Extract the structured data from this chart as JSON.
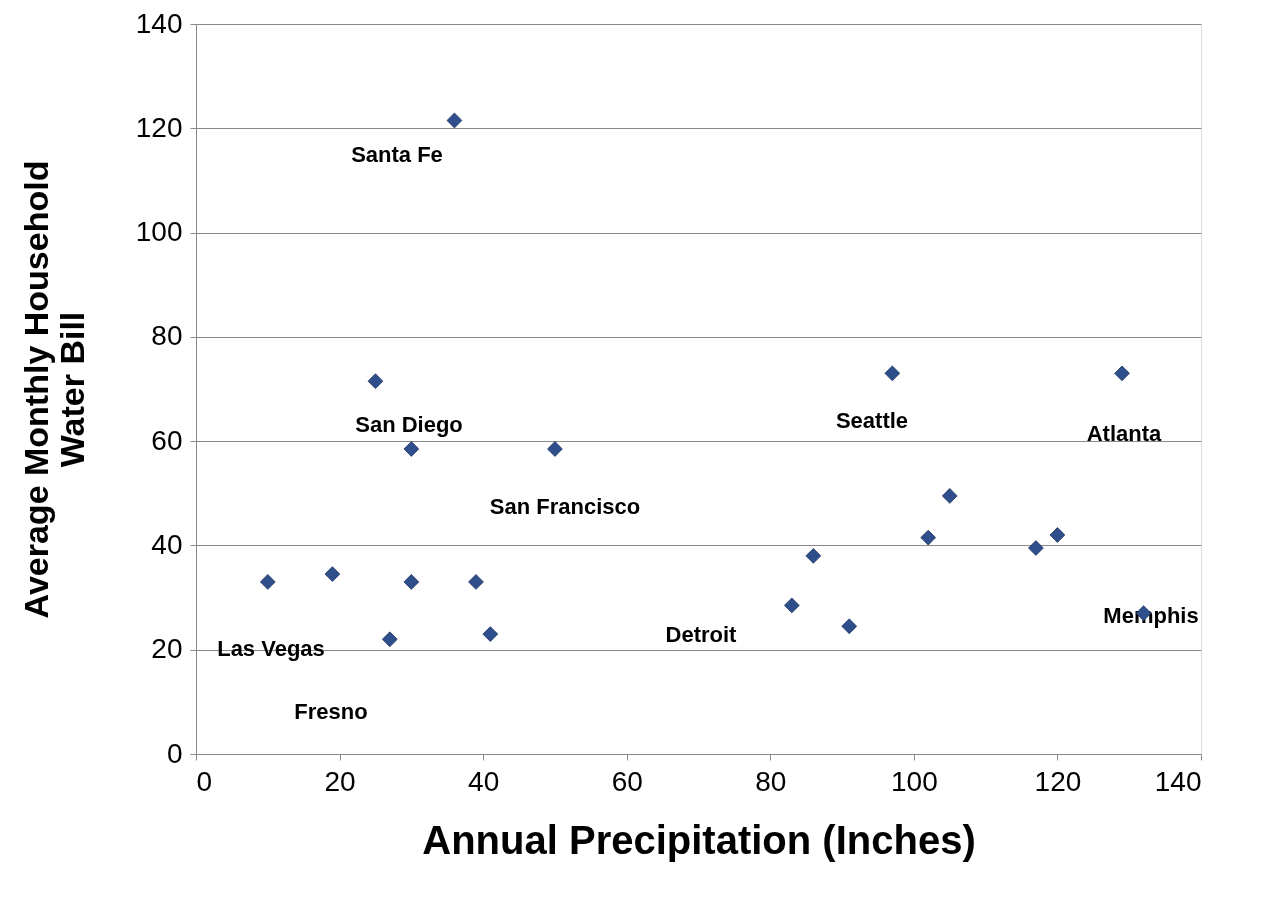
{
  "chart_data": {
    "type": "scatter",
    "xlabel": "Annual Precipitation (Inches)",
    "ylabel": "Average Monthly Household Water Bill",
    "x": [
      10,
      19,
      25,
      27,
      30,
      30,
      36,
      39,
      41,
      50,
      83,
      86,
      91,
      97,
      102,
      105,
      117,
      120,
      129,
      132
    ],
    "series": [
      {
        "color": "#2f4f8c",
        "values": [
          33,
          34.5,
          71.5,
          22,
          58.5,
          33,
          121.5,
          33,
          23,
          58.5,
          28.5,
          38,
          24.5,
          73,
          41.5,
          49.5,
          39.5,
          42,
          73,
          27
        ]
      }
    ],
    "marker": "diamond",
    "grid": "y",
    "xlim": [
      0,
      140
    ],
    "xticks": [
      0,
      20,
      40,
      60,
      80,
      100,
      120,
      140
    ],
    "ylim": [
      0,
      140
    ],
    "yticks": [
      0,
      20,
      40,
      60,
      80,
      100,
      120,
      140
    ],
    "annotations": [
      "Santa Fe",
      "San Diego",
      "San Francisco",
      "Las Vegas",
      "Fresno",
      "Detroit",
      "Seattle",
      "Atlanta",
      "Memphis"
    ]
  }
}
